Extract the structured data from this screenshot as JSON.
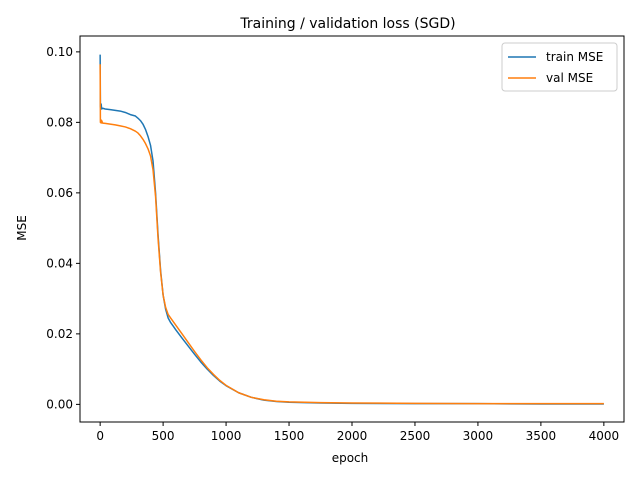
{
  "chart_data": {
    "type": "line",
    "title": "Training / validation loss (SGD)",
    "xlabel": "epoch",
    "ylabel": "MSE",
    "xlim": [
      -160,
      4160
    ],
    "ylim": [
      -0.005,
      0.1045
    ],
    "xticks": [
      0,
      500,
      1000,
      1500,
      2000,
      2500,
      3000,
      3500,
      4000
    ],
    "xtick_labels": [
      "0",
      "500",
      "1000",
      "1500",
      "2000",
      "2500",
      "3000",
      "3500",
      "4000"
    ],
    "yticks": [
      0.0,
      0.02,
      0.04,
      0.06,
      0.08,
      0.1
    ],
    "ytick_labels": [
      "0.00",
      "0.02",
      "0.04",
      "0.06",
      "0.08",
      "0.10"
    ],
    "grid": false,
    "legend_position": "top-right",
    "series": [
      {
        "name": "train MSE",
        "color": "#1f77b4",
        "x": [
          0,
          2,
          5,
          8,
          12,
          20,
          40,
          80,
          120,
          160,
          200,
          240,
          280,
          300,
          320,
          340,
          360,
          380,
          400,
          420,
          440,
          460,
          480,
          500,
          520,
          540,
          560,
          580,
          600,
          650,
          700,
          750,
          800,
          850,
          900,
          950,
          1000,
          1100,
          1200,
          1300,
          1400,
          1500,
          1750,
          2000,
          2500,
          3000,
          3500,
          4000
        ],
        "y": [
          0.0992,
          0.0845,
          0.084,
          0.0852,
          0.0838,
          0.084,
          0.0838,
          0.0836,
          0.0834,
          0.0832,
          0.0828,
          0.0822,
          0.0818,
          0.0812,
          0.0805,
          0.0795,
          0.078,
          0.076,
          0.0735,
          0.069,
          0.06,
          0.048,
          0.038,
          0.031,
          0.027,
          0.0245,
          0.0232,
          0.0222,
          0.0212,
          0.0188,
          0.0165,
          0.0142,
          0.012,
          0.01,
          0.0082,
          0.0066,
          0.0053,
          0.0033,
          0.002,
          0.0012,
          0.0008,
          0.0006,
          0.0004,
          0.0003,
          0.0002,
          0.0002,
          0.0001,
          0.0001
        ]
      },
      {
        "name": "val MSE",
        "color": "#ff7f0e",
        "x": [
          0,
          2,
          5,
          8,
          12,
          20,
          40,
          80,
          120,
          160,
          200,
          240,
          280,
          300,
          320,
          340,
          360,
          380,
          400,
          420,
          440,
          460,
          480,
          500,
          520,
          540,
          560,
          580,
          600,
          650,
          700,
          750,
          800,
          850,
          900,
          950,
          1000,
          1100,
          1200,
          1300,
          1400,
          1500,
          1750,
          2000,
          2500,
          3000,
          3500,
          4000
        ],
        "y": [
          0.0965,
          0.08,
          0.0808,
          0.0798,
          0.0805,
          0.0798,
          0.0797,
          0.0795,
          0.0793,
          0.079,
          0.0787,
          0.0782,
          0.0775,
          0.077,
          0.0762,
          0.0752,
          0.074,
          0.0725,
          0.0705,
          0.0665,
          0.059,
          0.047,
          0.0375,
          0.031,
          0.0275,
          0.0255,
          0.0245,
          0.0235,
          0.0225,
          0.02,
          0.0175,
          0.015,
          0.0126,
          0.0104,
          0.0085,
          0.0068,
          0.0054,
          0.0033,
          0.002,
          0.0013,
          0.0009,
          0.0007,
          0.0005,
          0.0004,
          0.0003,
          0.0002,
          0.0002,
          0.0002
        ]
      }
    ]
  }
}
